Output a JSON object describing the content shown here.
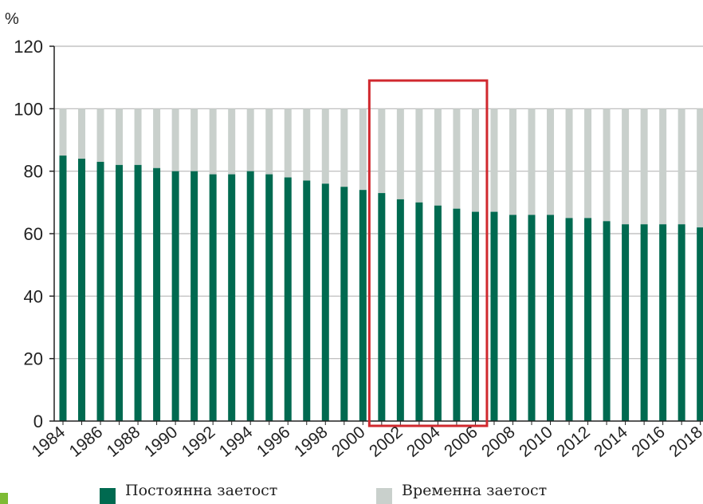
{
  "chart_data": {
    "type": "bar",
    "stacked": true,
    "ylabel": "%",
    "ylim": [
      0,
      120
    ],
    "yticks": [
      0,
      20,
      40,
      60,
      80,
      100,
      120
    ],
    "grid": true,
    "categories": [
      "1984",
      "1985",
      "1986",
      "1987",
      "1988",
      "1989",
      "1990",
      "1991",
      "1992",
      "1993",
      "1994",
      "1995",
      "1996",
      "1997",
      "1998",
      "1999",
      "2000",
      "2001",
      "2002",
      "2003",
      "2004",
      "2005",
      "2006",
      "2007",
      "2008",
      "2009",
      "2010",
      "2011",
      "2012",
      "2013",
      "2014",
      "2015",
      "2016",
      "2017",
      "2018"
    ],
    "xtick_labels": [
      "1984",
      "1986",
      "1988",
      "1990",
      "1992",
      "1994",
      "1996",
      "1998",
      "2000",
      "2002",
      "2004",
      "2006",
      "2008",
      "2010",
      "2012",
      "2014",
      "2016",
      "2018"
    ],
    "series": [
      {
        "name": "Постоянна заетост",
        "color": "#006a50",
        "values": [
          85,
          84,
          83,
          82,
          82,
          81,
          80,
          80,
          79,
          79,
          80,
          79,
          78,
          77,
          76,
          75,
          74,
          73,
          71,
          70,
          69,
          68,
          67,
          67,
          66,
          66,
          66,
          65,
          65,
          64,
          63,
          63,
          63,
          63,
          62
        ]
      },
      {
        "name": "Временна заетост",
        "color": "#c9d0cc",
        "values": [
          15,
          16,
          17,
          18,
          18,
          19,
          20,
          20,
          21,
          21,
          20,
          21,
          22,
          23,
          24,
          25,
          26,
          27,
          29,
          30,
          31,
          32,
          33,
          33,
          34,
          34,
          34,
          35,
          35,
          36,
          37,
          37,
          37,
          37,
          38
        ]
      }
    ],
    "highlight": {
      "from": "2001",
      "to": "2006",
      "color": "#d0282e"
    }
  },
  "legend": {
    "permanent_label": "Постоянна заетост",
    "temporary_label": "Временна заетост"
  }
}
